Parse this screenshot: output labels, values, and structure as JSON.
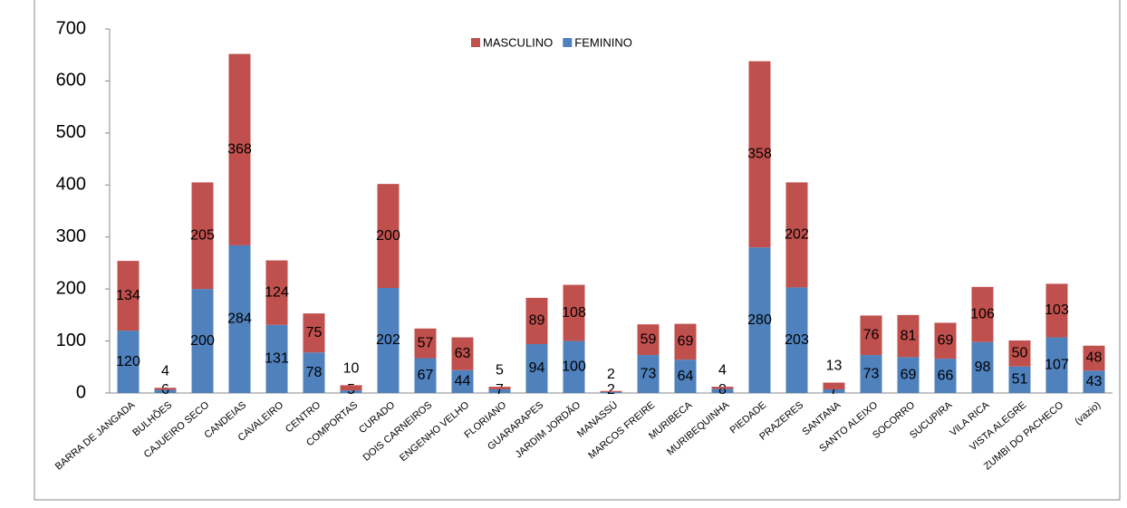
{
  "chart_data": {
    "type": "stacked_bar",
    "categories": [
      "BARRA DE JANGADA",
      "BULHÕES",
      "CAJUEIRO SECO",
      "CANDEIAS",
      "CAVALEIRO",
      "CENTRO",
      "COMPORTAS",
      "CURADO",
      "DOIS CARNEIROS",
      "ENGENHO VELHO",
      "FLORIANO",
      "GUARARAPES",
      "JARDIM JORDÃO",
      "MANASSÚ",
      "MARCOS FREIRE",
      "MURIBECA",
      "MURIBEQUINHA",
      "PIEDADE",
      "PRAZERES",
      "SANTANA",
      "SANTO ALEIXO",
      "SOCORRO",
      "SUCUPIRA",
      "VILA RICA",
      "VISTA ALEGRE",
      "ZUMBI DO PACHECO",
      "(vazio)"
    ],
    "series": [
      {
        "name": "FEMININO",
        "color": "#4f81bd",
        "values": [
          120,
          6,
          200,
          284,
          131,
          78,
          5,
          202,
          67,
          44,
          7,
          94,
          100,
          2,
          73,
          64,
          8,
          280,
          203,
          7,
          73,
          69,
          66,
          98,
          51,
          107,
          43
        ]
      },
      {
        "name": "MASCULINO",
        "color": "#c0504d",
        "values": [
          134,
          4,
          205,
          368,
          124,
          75,
          10,
          200,
          57,
          63,
          5,
          89,
          108,
          2,
          59,
          69,
          4,
          358,
          202,
          13,
          76,
          81,
          69,
          106,
          50,
          103,
          48
        ]
      }
    ],
    "ylim": [
      0,
      700
    ],
    "yticks": [
      0,
      100,
      200,
      300,
      400,
      500,
      600,
      700
    ],
    "grid": false,
    "legend": "top"
  }
}
